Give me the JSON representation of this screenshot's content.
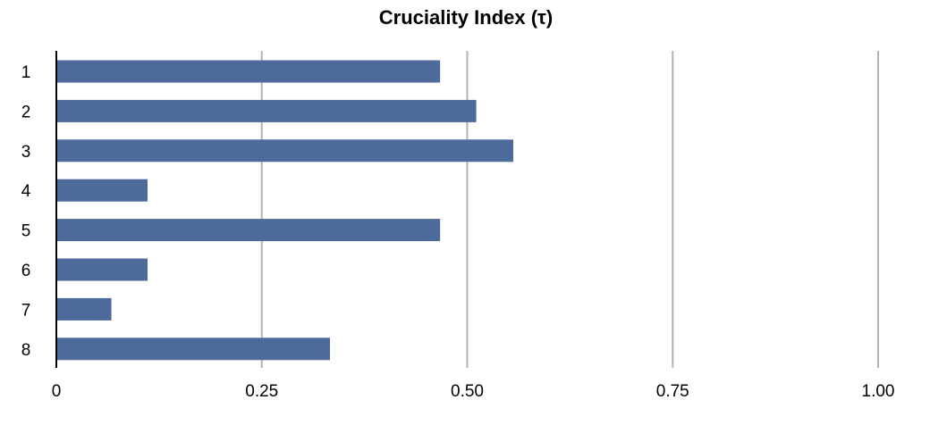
{
  "chart_data": {
    "type": "bar",
    "orientation": "horizontal",
    "title": "Cruciality Index (τ)",
    "categories": [
      "1",
      "2",
      "3",
      "4",
      "5",
      "6",
      "7",
      "8"
    ],
    "values": [
      0.467,
      0.511,
      0.556,
      0.111,
      0.467,
      0.111,
      0.067,
      0.333
    ],
    "xlim": [
      0,
      1.0
    ],
    "x_ticks": [
      0,
      0.25,
      0.5,
      0.75,
      1.0
    ],
    "x_tick_labels": [
      "0",
      "0.25",
      "0.50",
      "0.75",
      "1.00"
    ],
    "xlabel": "",
    "ylabel": "",
    "grid": true,
    "bar_color": "#4d6b9a"
  }
}
